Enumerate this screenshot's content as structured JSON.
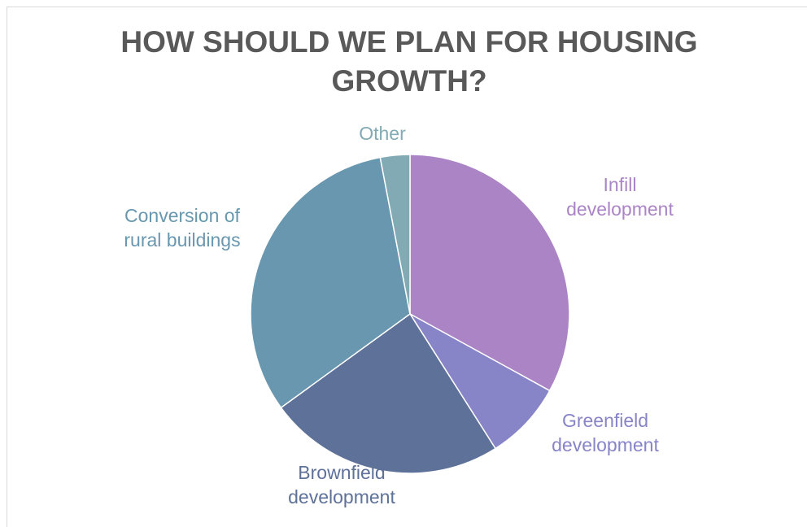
{
  "chart_data": {
    "type": "pie",
    "title": "HOW SHOULD WE PLAN FOR HOUSING GROWTH?",
    "title_lines": [
      "HOW SHOULD WE PLAN FOR HOUSING",
      "GROWTH?"
    ],
    "start_angle_deg": 0,
    "direction": "clockwise",
    "slices": [
      {
        "name": "Infill development",
        "label_lines": [
          "Infill",
          "development"
        ],
        "value": 33,
        "color": "#ab84c6"
      },
      {
        "name": "Greenfield development",
        "label_lines": [
          "Greenfield",
          "development"
        ],
        "value": 8,
        "color": "#8784c7"
      },
      {
        "name": "Brownfield development",
        "label_lines": [
          "Brownfield",
          "development"
        ],
        "value": 24,
        "color": "#5e7198"
      },
      {
        "name": "Conversion of rural buildings",
        "label_lines": [
          "Conversion of",
          "rural buildings"
        ],
        "value": 32,
        "color": "#6897af"
      },
      {
        "name": "Other",
        "label_lines": [
          "Other"
        ],
        "value": 3,
        "color": "#82aab5"
      }
    ],
    "label_colors": [
      "#ab84c6",
      "#8784c7",
      "#5e7198",
      "#6897af",
      "#82aab5"
    ],
    "legend": "none"
  }
}
